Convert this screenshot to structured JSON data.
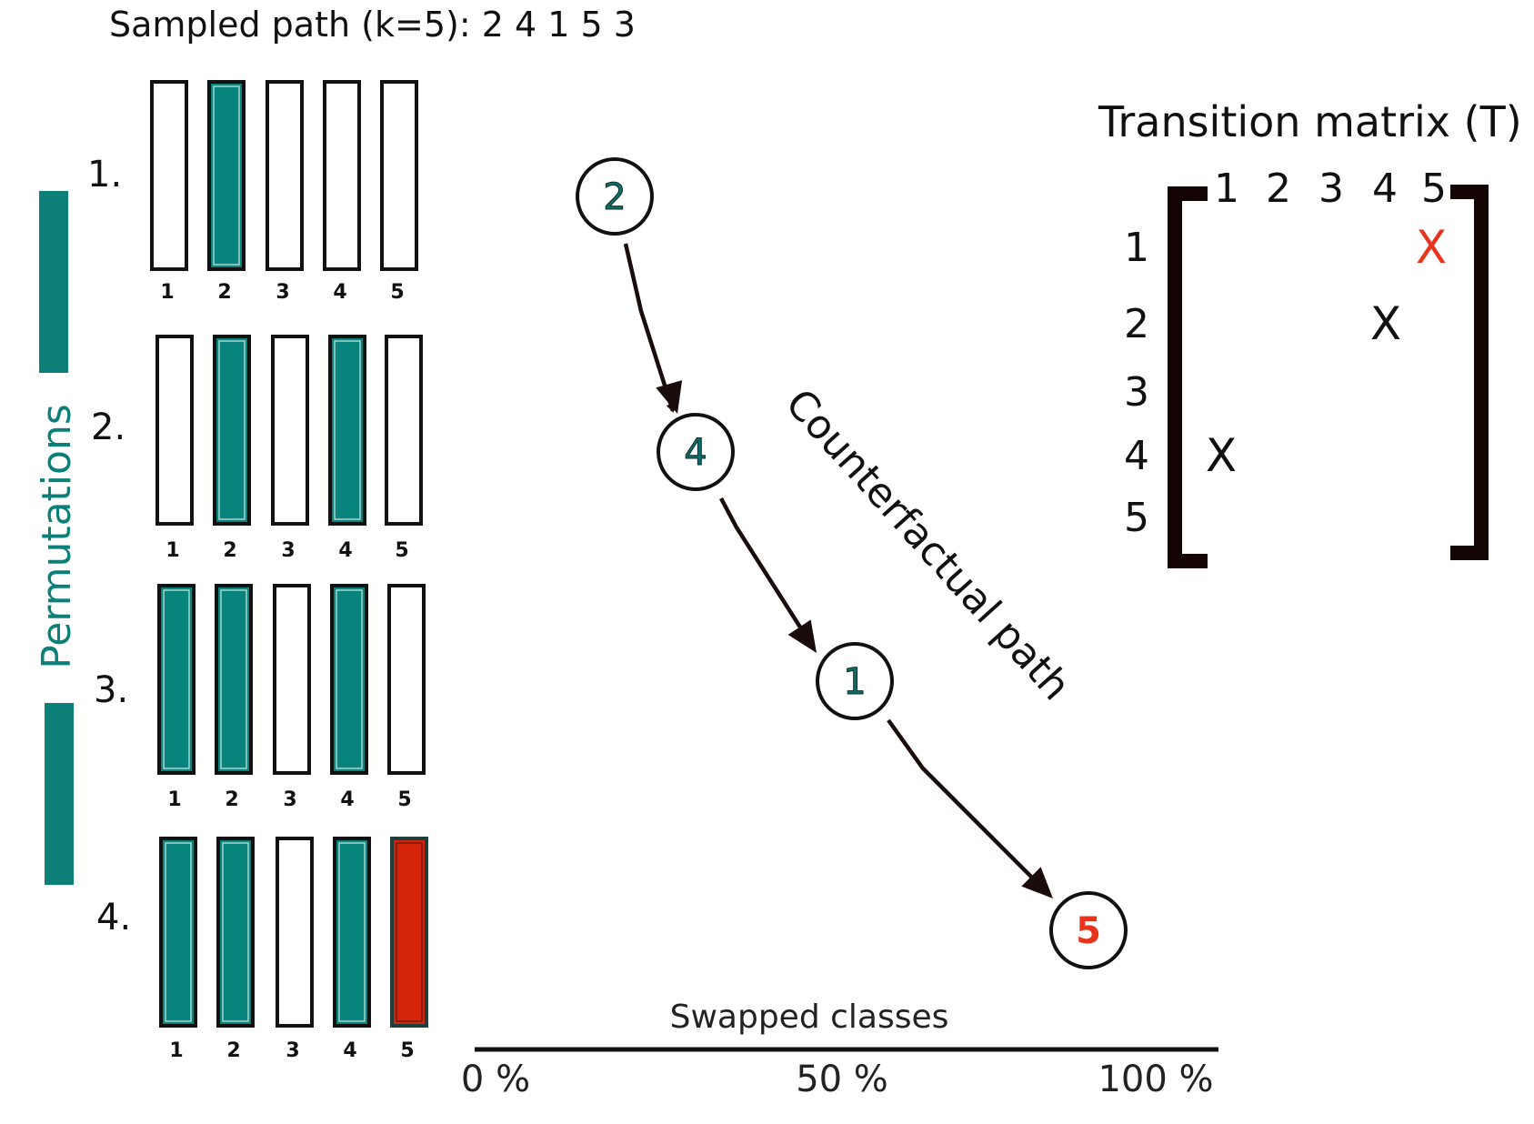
{
  "title": "Sampled path (k=5): 2 4 1 5 3",
  "permutations_label": "Permutations",
  "colors": {
    "filled": "#09847c",
    "swapped": "#d42409",
    "outline": "#111111",
    "path_node_text": "#0b6e69",
    "highlight": "#e8341c",
    "bracket": "#150404",
    "arrow": "#1a0c0c",
    "sidebar": "#0b7f78"
  },
  "permutations": [
    {
      "label": "1.",
      "bars": [
        {
          "num": "1",
          "state": "empty"
        },
        {
          "num": "2",
          "state": "filled"
        },
        {
          "num": "3",
          "state": "empty"
        },
        {
          "num": "4",
          "state": "empty"
        },
        {
          "num": "5",
          "state": "empty"
        }
      ]
    },
    {
      "label": "2.",
      "bars": [
        {
          "num": "1",
          "state": "empty"
        },
        {
          "num": "2",
          "state": "filled"
        },
        {
          "num": "3",
          "state": "empty"
        },
        {
          "num": "4",
          "state": "filled"
        },
        {
          "num": "5",
          "state": "empty"
        }
      ]
    },
    {
      "label": "3.",
      "bars": [
        {
          "num": "1",
          "state": "filled"
        },
        {
          "num": "2",
          "state": "filled"
        },
        {
          "num": "3",
          "state": "empty"
        },
        {
          "num": "4",
          "state": "filled"
        },
        {
          "num": "5",
          "state": "empty"
        }
      ]
    },
    {
      "label": "4.",
      "bars": [
        {
          "num": "1",
          "state": "filled"
        },
        {
          "num": "2",
          "state": "filled"
        },
        {
          "num": "3",
          "state": "empty"
        },
        {
          "num": "4",
          "state": "filled"
        },
        {
          "num": "5",
          "state": "swapped"
        }
      ]
    }
  ],
  "path": {
    "label": "Counterfactual path",
    "nodes": [
      {
        "label": "2",
        "highlight": false
      },
      {
        "label": "4",
        "highlight": false
      },
      {
        "label": "1",
        "highlight": false
      },
      {
        "label": "5",
        "highlight": true
      }
    ]
  },
  "axis": {
    "title": "Swapped classes",
    "ticks": [
      "0 %",
      "50 %",
      "100 %"
    ]
  },
  "matrix": {
    "title": "Transition matrix (T)",
    "col_labels": [
      "1",
      "2",
      "3",
      "4",
      "5"
    ],
    "row_labels": [
      "1",
      "2",
      "3",
      "4",
      "5"
    ],
    "marks": [
      {
        "row": 1,
        "col": 5,
        "symbol": "X",
        "highlight": true
      },
      {
        "row": 2,
        "col": 4,
        "symbol": "X",
        "highlight": false
      },
      {
        "row": 4,
        "col": 1,
        "symbol": "X",
        "highlight": false
      }
    ]
  }
}
